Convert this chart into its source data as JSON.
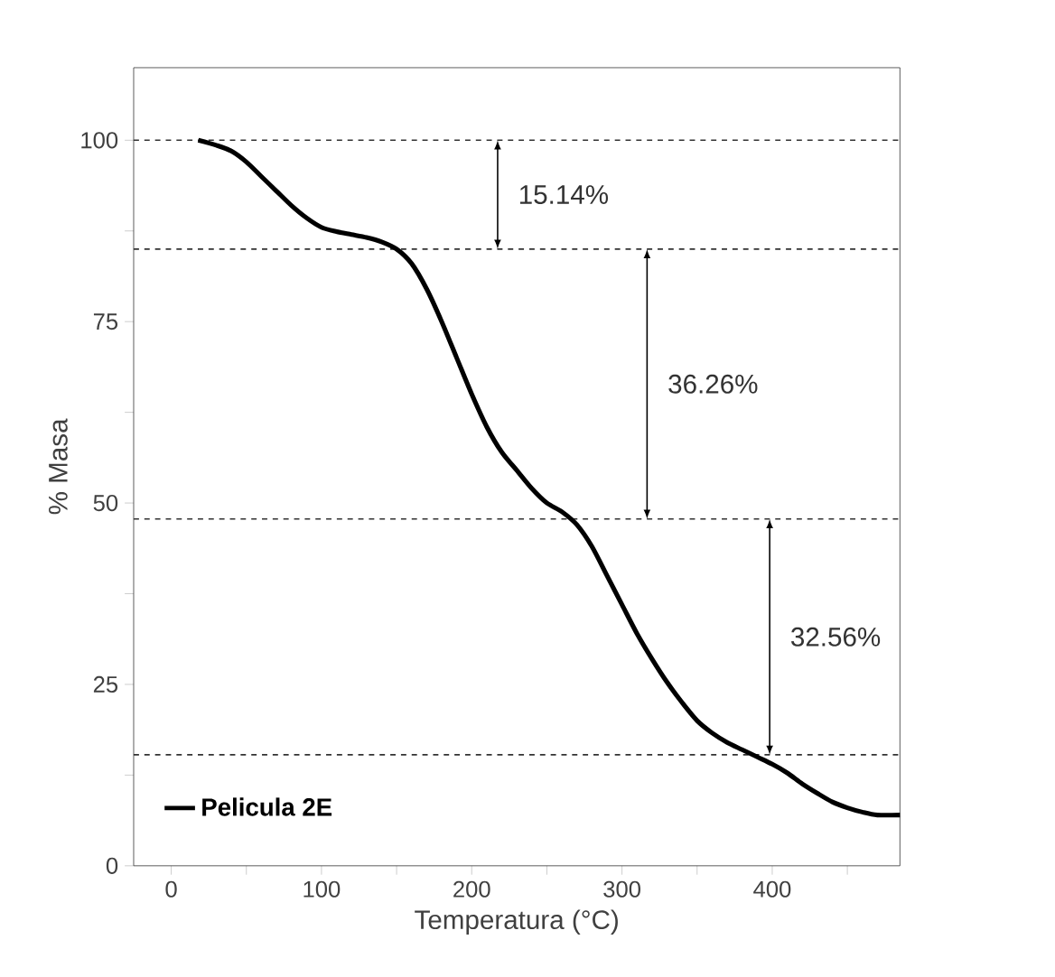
{
  "chart_data": {
    "type": "line",
    "xlabel": "Temperatura (°C)",
    "ylabel": "% Masa",
    "xlim": [
      -25,
      485
    ],
    "ylim": [
      0,
      110
    ],
    "xticks": [
      0,
      {
        "value": 50,
        "label": null
      },
      100,
      {
        "value": 150,
        "label": null
      },
      200,
      {
        "value": 250,
        "label": null
      },
      300,
      {
        "value": 350,
        "label": null
      },
      400,
      {
        "value": 450,
        "label": null
      }
    ],
    "yticks": [
      0,
      {
        "value": 12.5,
        "label": null
      },
      25,
      {
        "value": 37.5,
        "label": null
      },
      50,
      {
        "value": 62.5,
        "label": null
      },
      75,
      {
        "value": 87.5,
        "label": null
      },
      100
    ],
    "series": [
      {
        "name": "Pelicula 2E",
        "color": "#000000",
        "x": [
          18,
          30,
          40,
          50,
          60,
          70,
          80,
          90,
          100,
          110,
          120,
          130,
          140,
          150,
          160,
          170,
          180,
          190,
          200,
          210,
          220,
          230,
          240,
          250,
          260,
          270,
          280,
          290,
          300,
          310,
          320,
          330,
          340,
          350,
          360,
          370,
          380,
          390,
          400,
          410,
          420,
          430,
          440,
          450,
          460,
          470,
          485
        ],
        "values": [
          100,
          99.3,
          98.5,
          97,
          95,
          93,
          91,
          89.3,
          88,
          87.4,
          87,
          86.6,
          86,
          85,
          83,
          79.5,
          75,
          70,
          65,
          60.5,
          57,
          54.5,
          52,
          50,
          48.8,
          47,
          44,
          40,
          36,
          32,
          28.5,
          25.3,
          22.5,
          20,
          18.3,
          17,
          16,
          15,
          14,
          12.8,
          11.3,
          10,
          8.8,
          8,
          7.4,
          7,
          7
        ]
      }
    ],
    "ref_lines": [
      {
        "axis": "y",
        "value": 100,
        "line_style": "dashed",
        "color": "#333333"
      },
      {
        "axis": "y",
        "value": 85,
        "line_style": "dashed",
        "color": "#333333"
      },
      {
        "axis": "y",
        "value": 47.8,
        "line_style": "dashed",
        "color": "#333333"
      },
      {
        "axis": "y",
        "value": 15.3,
        "line_style": "dashed",
        "color": "#333333"
      }
    ],
    "annotations": [
      "15.14%",
      "36.26%",
      "32.56%"
    ],
    "legend": "bottom left",
    "marker": "none",
    "line_style": "solid",
    "grid": false
  }
}
